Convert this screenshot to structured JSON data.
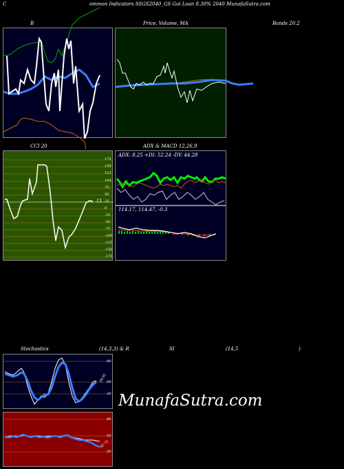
{
  "header": {
    "c": "C",
    "title": "ommon  Indicators SSGS2040_GS Goi  Loan  8.30% 2040  MunafaSutra.com"
  },
  "bollinger": {
    "left": "B",
    "right": "Bands 20.2"
  },
  "price_ma": {
    "label": "Price,  Volume,  MA",
    "overlay": "Volume"
  },
  "cci": {
    "label": "CCI 20",
    "value": "13",
    "ticks": [
      "175",
      "150",
      "125",
      "100",
      "75",
      "50",
      "25",
      "0",
      "-25",
      "-50",
      "-75",
      "-100",
      "-125",
      "-150",
      "-175"
    ]
  },
  "adx": {
    "label": "ADX  & MACD 12,26,9",
    "values": "ADX: 8.25  +DI: 52.24  -DY: 44.28"
  },
  "macd": {
    "values": "114.17,   114.47,   -0.3"
  },
  "stoch": {
    "label": "Stochastics",
    "params": "(14,3,3) & R",
    "si": "SI",
    "params2": "(14,5",
    "close": ")",
    "ticks": [
      "80",
      "50",
      "20"
    ],
    "value": "29.91"
  },
  "rsi": {
    "ticks": [
      "80",
      "50",
      "20"
    ],
    "value": "42.72"
  },
  "watermark": "MunafaSutra.com",
  "colors": {
    "bg": "#000000",
    "panel_navy": "#000025",
    "price_bg": "#002000",
    "cci_bg": "#2a5500",
    "rsi_bg": "#8a0000",
    "green_line": "#00cc00",
    "blue_line": "#3a7fff",
    "orange_line": "#cc6600"
  }
}
